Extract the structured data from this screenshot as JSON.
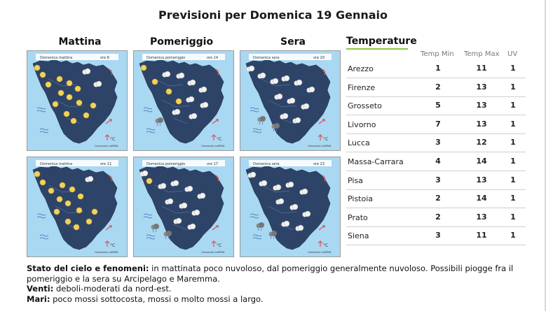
{
  "title": "Previsioni per Domenica 19 Gennaio",
  "periods": [
    "Mattina",
    "Pomeriggio",
    "Sera"
  ],
  "maps": [
    {
      "label": "Domenica mattina",
      "time": "ore 8",
      "credit": "Consorzio LaMMA"
    },
    {
      "label": "Domenica pomeriggio",
      "time": "ore 14",
      "credit": "Consorzio LaMMA"
    },
    {
      "label": "Domenica sera",
      "time": "ore 20",
      "credit": "Consorzio LaMMA"
    },
    {
      "label": "Domenica mattina",
      "time": "ore 11",
      "credit": "Consorzio LaMMA"
    },
    {
      "label": "Domenica pomeriggio",
      "time": "ore 17",
      "credit": "Consorzio LaMMA"
    },
    {
      "label": "Domenica sera",
      "time": "ore 23",
      "credit": "Consorzio LaMMA"
    }
  ],
  "temperature": {
    "title": "Temperature",
    "headers": [
      "Temp Min",
      "Temp Max",
      "UV"
    ],
    "rows": [
      {
        "city": "Arezzo",
        "min": "1",
        "max": "11",
        "uv": "1"
      },
      {
        "city": "Firenze",
        "min": "2",
        "max": "13",
        "uv": "1"
      },
      {
        "city": "Grosseto",
        "min": "5",
        "max": "13",
        "uv": "1"
      },
      {
        "city": "Livorno",
        "min": "7",
        "max": "13",
        "uv": "1"
      },
      {
        "city": "Lucca",
        "min": "3",
        "max": "12",
        "uv": "1"
      },
      {
        "city": "Massa-Carrara",
        "min": "4",
        "max": "14",
        "uv": "1"
      },
      {
        "city": "Pisa",
        "min": "3",
        "max": "13",
        "uv": "1"
      },
      {
        "city": "Pistoia",
        "min": "2",
        "max": "14",
        "uv": "1"
      },
      {
        "city": "Prato",
        "min": "2",
        "max": "13",
        "uv": "1"
      },
      {
        "city": "Siena",
        "min": "3",
        "max": "11",
        "uv": "1"
      }
    ]
  },
  "description": {
    "sky_label": "Stato del cielo e fenomeni:",
    "sky_text": " in mattinata poco nuvoloso, dal pomeriggio generalmente nuvoloso. Possibili piogge fra il pomeriggio e la sera su Arcipelago e Maremma.",
    "wind_label": "Venti:",
    "wind_text": " deboli-moderati da nord-est.",
    "sea_label": "Mari:",
    "sea_text": " poco mossi sottocosta, mossi o molto mossi a largo."
  },
  "colors": {
    "land": "#2d4468",
    "sea": "#a9d8f2",
    "sun": "#f1d25a",
    "accent": "#8dc63f",
    "arrow": "#d9534f"
  }
}
